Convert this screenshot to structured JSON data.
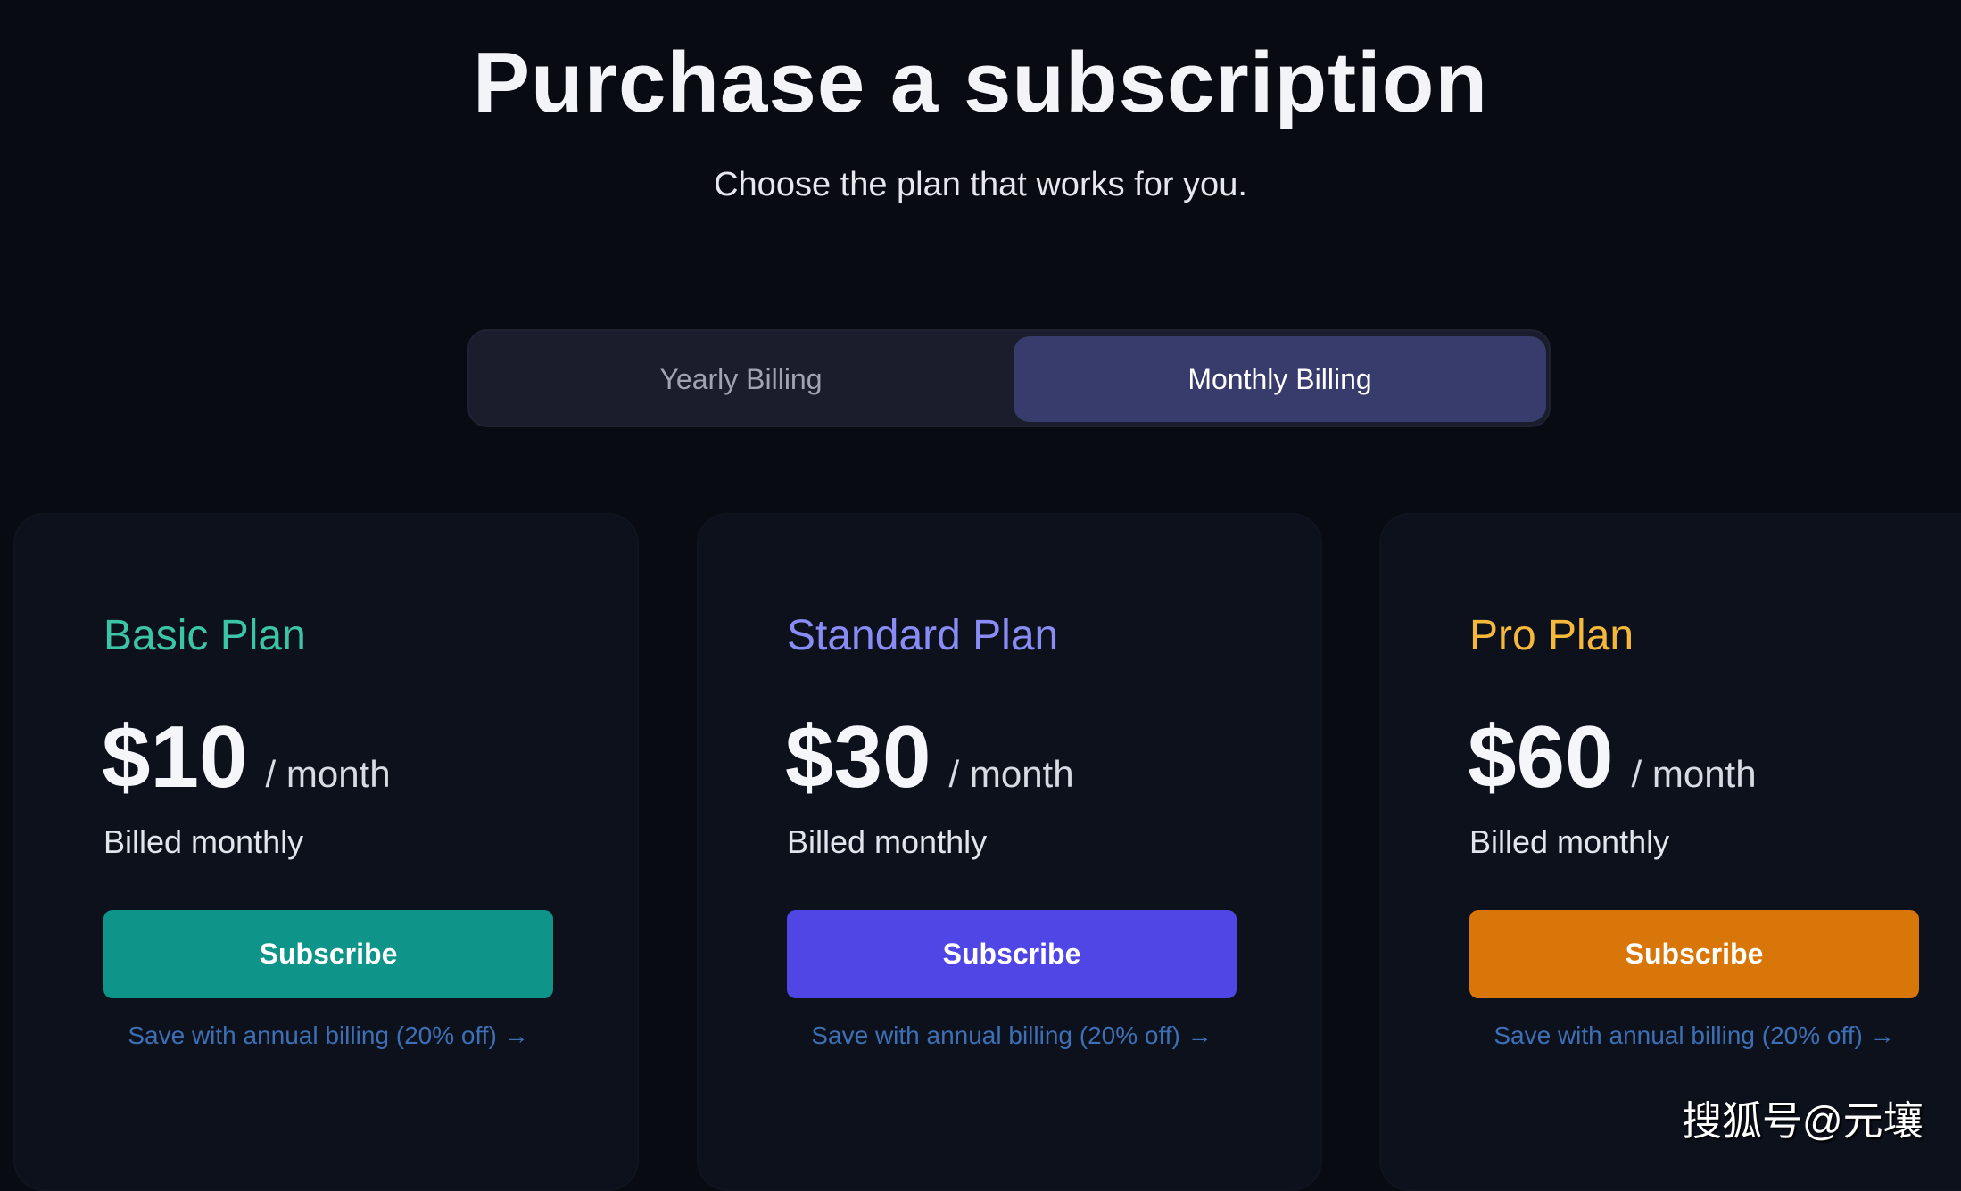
{
  "header": {
    "title": "Purchase a subscription",
    "subtitle": "Choose the plan that works for you."
  },
  "billing_toggle": {
    "options": [
      {
        "label": "Yearly Billing",
        "active": false
      },
      {
        "label": "Monthly Billing",
        "active": true
      }
    ]
  },
  "plans": [
    {
      "name": "Basic Plan",
      "price": "$10",
      "period": "/ month",
      "billing": "Billed monthly",
      "button": "Subscribe",
      "link": "Save with annual billing (20% off) →",
      "accent": "#3cc4a6",
      "button_color": "#0e9488"
    },
    {
      "name": "Standard Plan",
      "price": "$30",
      "period": "/ month",
      "billing": "Billed monthly",
      "button": "Subscribe",
      "link": "Save with annual billing (20% off) →",
      "accent": "#8a8cf5",
      "button_color": "#4f46e5"
    },
    {
      "name": "Pro Plan",
      "price": "$60",
      "period": "/ month",
      "billing": "Billed monthly",
      "button": "Subscribe",
      "link": "Save with annual billing (20% off) →",
      "accent": "#f5b83a",
      "button_color": "#d97609"
    }
  ],
  "watermark": "搜狐号@元壤"
}
